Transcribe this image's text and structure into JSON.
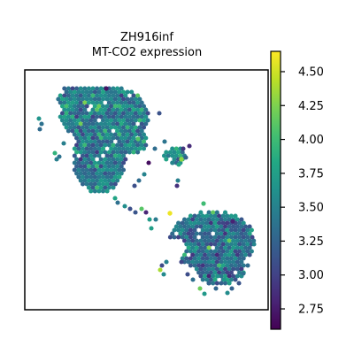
{
  "chart_data": {
    "type": "scatter",
    "title": "ZH916inf",
    "subtitle": "MT-CO2 expression",
    "xlabel": "",
    "ylabel": "",
    "grid": false,
    "colormap": "viridis",
    "colorbar": {
      "range": [
        2.6,
        4.65
      ],
      "ticks": [
        2.75,
        3.0,
        3.25,
        3.5,
        3.75,
        4.0,
        4.25,
        4.5
      ],
      "tick_labels": [
        "2.75",
        "3.00",
        "3.25",
        "3.50",
        "3.75",
        "4.00",
        "4.25",
        "4.50"
      ]
    },
    "spots": {
      "description_note": "",
      "upper_left_tissue_mean": 3.45,
      "lower_right_tissue_mean": 3.35,
      "highlight_values": [
        4.6,
        4.3,
        4.1,
        4.0,
        2.7,
        2.8
      ]
    }
  },
  "colors": {
    "viridis_low": "#440154",
    "viridis_mid": "#21918c",
    "viridis_high": "#fde725",
    "axes": "#000000",
    "background": "#ffffff"
  }
}
